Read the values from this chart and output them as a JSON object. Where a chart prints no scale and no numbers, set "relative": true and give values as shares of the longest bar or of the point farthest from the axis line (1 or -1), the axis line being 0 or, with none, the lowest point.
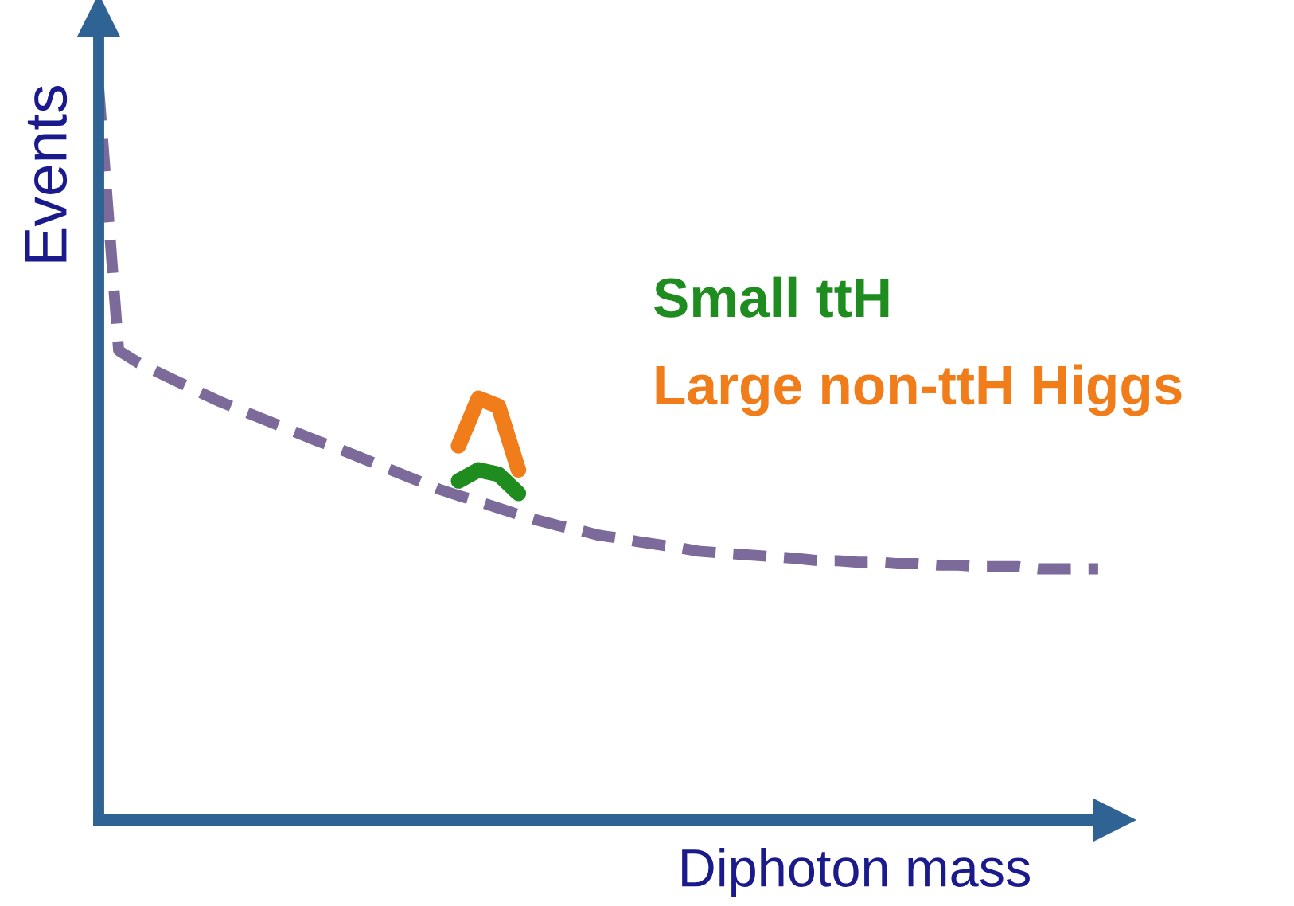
{
  "chart_data": {
    "type": "line",
    "relative": true,
    "xlabel": "Diphoton mass",
    "ylabel": "Events",
    "categories": [
      null,
      null,
      null,
      null,
      null,
      null,
      null,
      null,
      null,
      null,
      null,
      null,
      null,
      null,
      null,
      null,
      null,
      null,
      null,
      null,
      null,
      null,
      null,
      null,
      null,
      null,
      null,
      null,
      null,
      null,
      null,
      null,
      null,
      null,
      null,
      null,
      null,
      null,
      null,
      null,
      null,
      null,
      null,
      null,
      null,
      null,
      null,
      null,
      null,
      null,
      null
    ],
    "series": [
      {
        "color": "#7b6a9a",
        "line_style": "dashed",
        "values": [
          1.0,
          0.641,
          0.624,
          0.611,
          0.598,
          0.585,
          0.572,
          0.561,
          0.55,
          0.539,
          0.528,
          0.517,
          0.507,
          0.496,
          0.485,
          0.474,
          0.463,
          0.452,
          0.443,
          0.435,
          0.426,
          0.417,
          0.409,
          0.402,
          0.396,
          0.389,
          0.385,
          0.38,
          0.376,
          0.372,
          0.367,
          0.365,
          0.363,
          0.361,
          0.359,
          0.357,
          0.354,
          0.354,
          0.352,
          0.352,
          0.35,
          0.35,
          0.348,
          0.348,
          0.346,
          0.346,
          0.346,
          0.343,
          0.343,
          0.343,
          0.343
        ]
      },
      {
        "name": "Small ttH",
        "color": "#1e8c1e",
        "line_style": "solid",
        "values": [
          null,
          null,
          null,
          null,
          null,
          null,
          null,
          null,
          null,
          null,
          null,
          null,
          null,
          null,
          null,
          null,
          null,
          null,
          0.463,
          0.478,
          0.472,
          0.446,
          null,
          null,
          null,
          null,
          null,
          null,
          null,
          null,
          null,
          null,
          null,
          null,
          null,
          null,
          null,
          null,
          null,
          null,
          null,
          null,
          null,
          null,
          null,
          null,
          null,
          null,
          null,
          null,
          null
        ]
      },
      {
        "name": "Large non-ttH Higgs",
        "color": "#f07d1a",
        "line_style": "solid",
        "values": [
          null,
          null,
          null,
          null,
          null,
          null,
          null,
          null,
          null,
          null,
          null,
          null,
          null,
          null,
          null,
          null,
          null,
          null,
          0.511,
          0.576,
          0.565,
          0.478,
          null,
          null,
          null,
          null,
          null,
          null,
          null,
          null,
          null,
          null,
          null,
          null,
          null,
          null,
          null,
          null,
          null,
          null,
          null,
          null,
          null,
          null,
          null,
          null,
          null,
          null,
          null,
          null,
          null
        ]
      }
    ]
  }
}
